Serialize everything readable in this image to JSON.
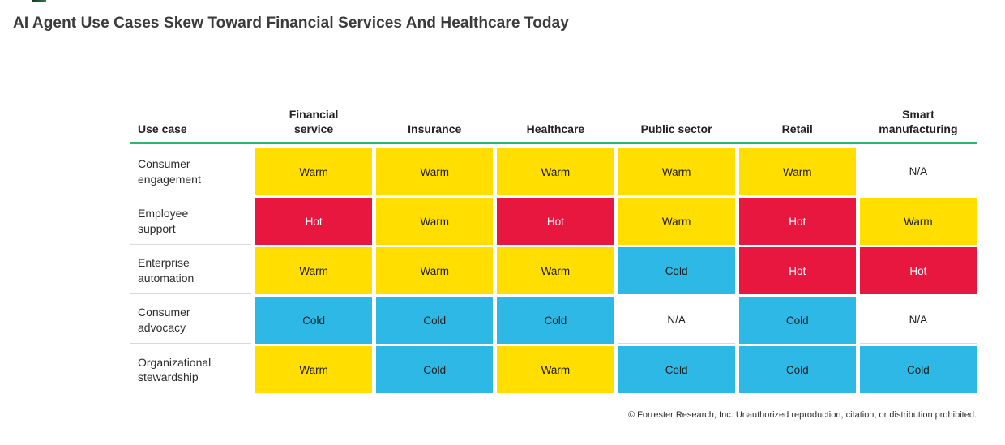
{
  "page": {
    "title": "AI Agent Use Cases Skew Toward Financial Services And Healthcare Today"
  },
  "table": {
    "columns": [
      "Use case",
      "Financial\nservice",
      "Insurance",
      "Healthcare",
      "Public sector",
      "Retail",
      "Smart\nmanufacturing"
    ],
    "rows": [
      {
        "use_case": "Consumer\nengagement",
        "cells": [
          "Warm",
          "Warm",
          "Warm",
          "Warm",
          "Warm",
          "N/A"
        ]
      },
      {
        "use_case": "Employee\nsupport",
        "cells": [
          "Hot",
          "Warm",
          "Hot",
          "Warm",
          "Hot",
          "Warm"
        ]
      },
      {
        "use_case": "Enterprise\nautomation",
        "cells": [
          "Warm",
          "Warm",
          "Warm",
          "Cold",
          "Hot",
          "Hot"
        ]
      },
      {
        "use_case": "Consumer\nadvocacy",
        "cells": [
          "Cold",
          "Cold",
          "Cold",
          "N/A",
          "Cold",
          "N/A"
        ]
      },
      {
        "use_case": "Organizational\nstewardship",
        "cells": [
          "Warm",
          "Cold",
          "Warm",
          "Cold",
          "Cold",
          "Cold"
        ]
      }
    ]
  },
  "colors": {
    "hot": "#e8173f",
    "warm": "#ffde00",
    "cold": "#2eb8e6",
    "na": "#ffffff",
    "hot_text": "#ffffff",
    "cell_text": "#1d1d1d",
    "header_rule": "#2bb673"
  },
  "footer": {
    "copyright": "© Forrester Research, Inc. Unauthorized reproduction, citation, or distribution prohibited."
  },
  "chart_data": {
    "type": "heatmap",
    "title": "AI Agent Use Cases Skew Toward Financial Services And Healthcare Today",
    "x_categories": [
      "Financial service",
      "Insurance",
      "Healthcare",
      "Public sector",
      "Retail",
      "Smart manufacturing"
    ],
    "y_categories": [
      "Consumer engagement",
      "Employee support",
      "Enterprise automation",
      "Consumer advocacy",
      "Organizational stewardship"
    ],
    "values": [
      [
        "Warm",
        "Warm",
        "Warm",
        "Warm",
        "Warm",
        "N/A"
      ],
      [
        "Hot",
        "Warm",
        "Hot",
        "Warm",
        "Hot",
        "Warm"
      ],
      [
        "Warm",
        "Warm",
        "Warm",
        "Cold",
        "Hot",
        "Hot"
      ],
      [
        "Cold",
        "Cold",
        "Cold",
        "N/A",
        "Cold",
        "N/A"
      ],
      [
        "Warm",
        "Cold",
        "Warm",
        "Cold",
        "Cold",
        "Cold"
      ]
    ],
    "scale": {
      "Hot": "#e8173f",
      "Warm": "#ffde00",
      "Cold": "#2eb8e6",
      "N/A": "#ffffff"
    },
    "legend_position": "none",
    "grid": false
  }
}
